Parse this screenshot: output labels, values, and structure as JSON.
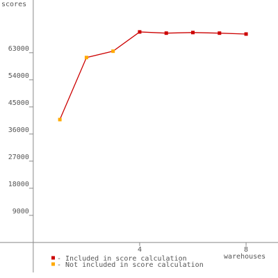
{
  "chart_data": {
    "type": "line",
    "x_label": "warehouses",
    "y_label": "scores",
    "x": [
      1,
      2,
      3,
      4,
      5,
      6,
      7,
      8
    ],
    "values": [
      40800,
      61400,
      63500,
      69900,
      69500,
      69700,
      69500,
      69200
    ],
    "point_included": [
      false,
      false,
      false,
      true,
      true,
      true,
      true,
      true
    ],
    "line_color": "#cc0000",
    "legend": [
      {
        "label": "- Included in score calculation",
        "color": "#cc0000"
      },
      {
        "label": "- Not included in score calculation",
        "color": "#ffaa00"
      }
    ],
    "xlim": [
      -1.25,
      9.2
    ],
    "ylim": [
      -11800,
      80500
    ],
    "xticks": [
      4,
      8
    ],
    "yticks": [
      9000,
      18000,
      27000,
      36000,
      45000,
      54000,
      63000
    ]
  }
}
